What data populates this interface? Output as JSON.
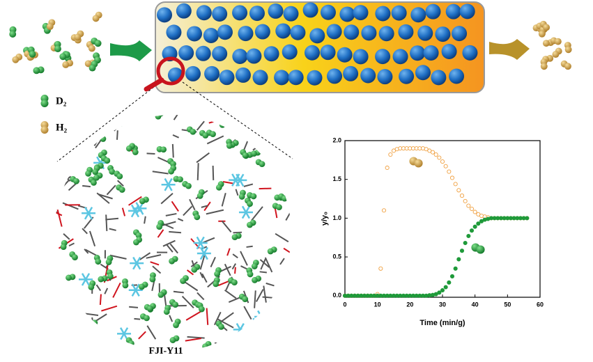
{
  "labels": {
    "d2": "D₂",
    "h2": "H₂",
    "material": "FJI-Y11"
  },
  "chart_data": {
    "type": "scatter",
    "xlabel": "Time (min/g)",
    "ylabel": "y/y₀",
    "xlim": [
      0,
      60
    ],
    "xticks": [
      0,
      10,
      20,
      30,
      40,
      50,
      60
    ],
    "ylim": [
      -0.02,
      2.0
    ],
    "yticks": [
      {
        "value": 0,
        "label": "0.0"
      },
      0.5,
      {
        "value": 1,
        "label": "1.0"
      },
      1.5,
      {
        "value": 2,
        "label": "2.0"
      }
    ],
    "x": [
      0,
      1,
      2,
      3,
      4,
      5,
      6,
      7,
      8,
      9,
      10,
      11,
      12,
      13,
      14,
      15,
      16,
      17,
      18,
      19,
      20,
      21,
      22,
      23,
      24,
      25,
      26,
      27,
      28,
      29,
      30,
      31,
      32,
      33,
      34,
      35,
      36,
      37,
      38,
      39,
      40,
      41,
      42,
      43,
      44,
      45,
      46,
      47,
      48,
      49,
      50,
      51,
      52,
      53,
      54,
      55,
      56
    ],
    "series": [
      {
        "color": "#f0a040",
        "marker": "open",
        "values": [
          0,
          0,
          0,
          0,
          0,
          0,
          0,
          0,
          0,
          0,
          0.02,
          0.35,
          1.1,
          1.65,
          1.82,
          1.87,
          1.89,
          1.9,
          1.9,
          1.9,
          1.9,
          1.9,
          1.9,
          1.9,
          1.9,
          1.89,
          1.87,
          1.85,
          1.82,
          1.78,
          1.73,
          1.67,
          1.6,
          1.52,
          1.44,
          1.36,
          1.29,
          1.22,
          1.16,
          1.12,
          1.08,
          1.05,
          1.03,
          1.02,
          1.01,
          1,
          1,
          1,
          1,
          1,
          1,
          1,
          1,
          1,
          1,
          1,
          1
        ]
      },
      {
        "color": "#1f9a3a",
        "marker": "filled",
        "values": [
          0,
          0,
          0,
          0,
          0,
          0,
          0,
          0,
          0,
          0,
          0,
          0,
          0,
          0,
          0,
          0,
          0,
          0,
          0,
          0,
          0,
          0,
          0,
          0,
          0,
          0,
          0.005,
          0.01,
          0.02,
          0.04,
          0.07,
          0.11,
          0.17,
          0.25,
          0.35,
          0.47,
          0.58,
          0.68,
          0.77,
          0.84,
          0.89,
          0.93,
          0.96,
          0.98,
          0.99,
          1,
          1,
          1,
          1,
          1,
          1,
          1,
          1,
          1,
          1,
          1,
          1
        ]
      }
    ]
  }
}
